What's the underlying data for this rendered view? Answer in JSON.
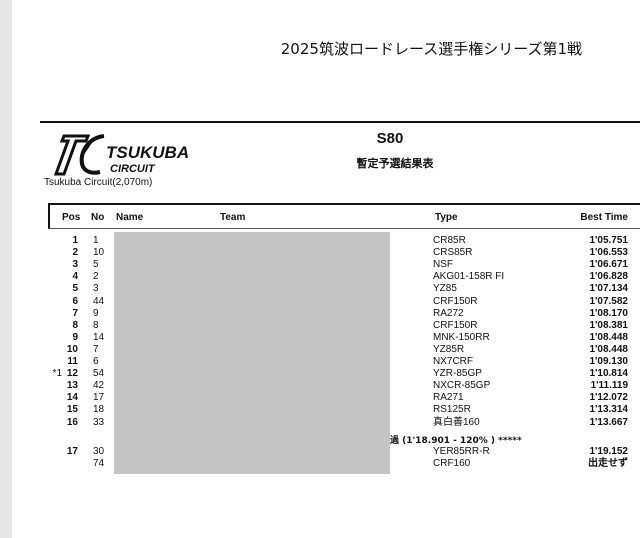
{
  "event_title": "2025筑波ロードレース選手権シリーズ第1戦",
  "logo": {
    "text": "TSUKUBA CIRCUIT"
  },
  "circuit": "Tsukuba Circuit(2,070m)",
  "class_name": "S80",
  "subtitle": "暫定予選結果表",
  "columns": {
    "pos": "Pos",
    "no": "No",
    "name": "Name",
    "team": "Team",
    "type": "Type",
    "best": "Best Time"
  },
  "rows": [
    {
      "mark": "",
      "pos": "1",
      "no": "1",
      "type": "CR85R",
      "best": "1'05.751"
    },
    {
      "mark": "",
      "pos": "2",
      "no": "10",
      "type": "CRS85R",
      "best": "1'06.553"
    },
    {
      "mark": "",
      "pos": "3",
      "no": "5",
      "type": "NSF",
      "best": "1'06.671"
    },
    {
      "mark": "",
      "pos": "4",
      "no": "2",
      "type": "AKG01-158R FI",
      "best": "1'06.828"
    },
    {
      "mark": "",
      "pos": "5",
      "no": "3",
      "type": "YZ85",
      "best": "1'07.134"
    },
    {
      "mark": "",
      "pos": "6",
      "no": "44",
      "type": "CRF150R",
      "best": "1'07.582"
    },
    {
      "mark": "",
      "pos": "7",
      "no": "9",
      "type": "RA272",
      "best": "1'08.170"
    },
    {
      "mark": "",
      "pos": "8",
      "no": "8",
      "type": "CRF150R",
      "best": "1'08.381"
    },
    {
      "mark": "",
      "pos": "9",
      "no": "14",
      "type": "MNK-150RR",
      "best": "1'08.448"
    },
    {
      "mark": "",
      "pos": "10",
      "no": "7",
      "type": "YZ85R",
      "best": "1'08.448"
    },
    {
      "mark": "",
      "pos": "11",
      "no": "6",
      "type": "NX7CRF",
      "best": "1'09.130"
    },
    {
      "mark": "*1",
      "pos": "12",
      "no": "54",
      "type": "YZR-85GP",
      "best": "1'10.814"
    },
    {
      "mark": "",
      "pos": "13",
      "no": "42",
      "type": "NXCR-85GP",
      "best": "1'11.119"
    },
    {
      "mark": "",
      "pos": "14",
      "no": "17",
      "type": "RA271",
      "best": "1'12.072"
    },
    {
      "mark": "",
      "pos": "15",
      "no": "18",
      "type": "RS125R",
      "best": "1'13.314"
    },
    {
      "mark": "",
      "pos": "16",
      "no": "33",
      "type": "真白善160",
      "best": "1'13.667"
    }
  ],
  "separator": "過 (1'18.901 - 120% ) *****",
  "rows_after": [
    {
      "mark": "",
      "pos": "17",
      "no": "30",
      "type": "YER85RR-R",
      "best": "1'19.152"
    },
    {
      "mark": "",
      "pos": "",
      "no": "74",
      "type": "CRF160",
      "best": "出走せず"
    }
  ]
}
